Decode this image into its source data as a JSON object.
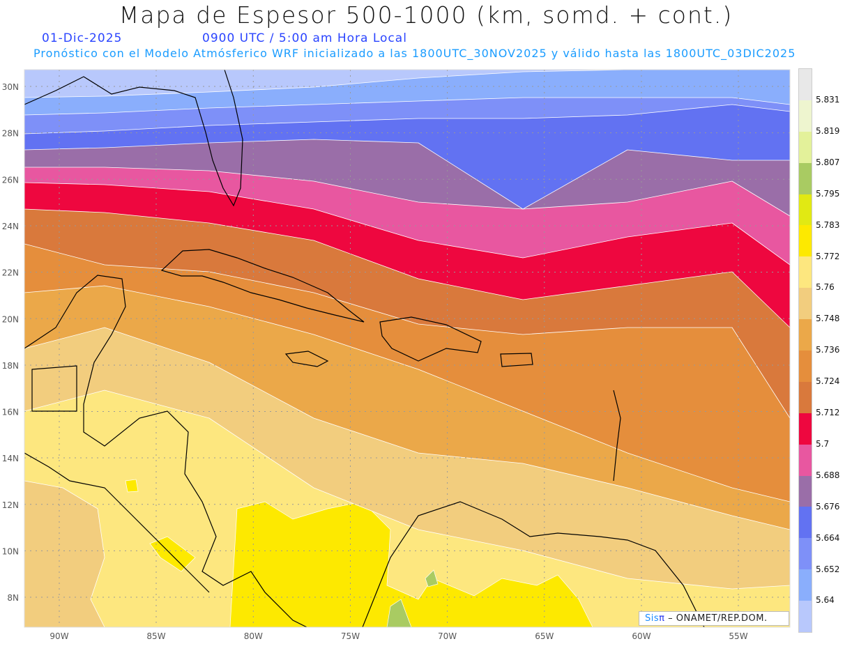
{
  "header": {
    "title": "Mapa de Espesor 500-1000 (km, somd. + cont.)",
    "date": "01-Dic-2025",
    "time": "0900 UTC / 5:00 am Hora Local",
    "subtitle": "Pronóstico con el Modelo Atmósferico WRF inicializado a las 1800UTC_30NOV2025 y válido hasta las  1800UTC_03DIC2025"
  },
  "axes": {
    "lat_labels": [
      "30N",
      "28N",
      "26N",
      "24N",
      "22N",
      "20N",
      "18N",
      "16N",
      "14N",
      "12N",
      "10N",
      "8N"
    ],
    "lon_labels": [
      "90W",
      "85W",
      "80W",
      "75W",
      "70W",
      "65W",
      "60W",
      "55W"
    ]
  },
  "colorbar": {
    "levels": [
      "5.831",
      "5.819",
      "5.807",
      "5.795",
      "5.783",
      "5.772",
      "5.76",
      "5.748",
      "5.736",
      "5.724",
      "5.712",
      "5.7",
      "5.688",
      "5.676",
      "5.664",
      "5.652",
      "5.64"
    ],
    "colors": [
      "#e8e8e8",
      "#eef5cf",
      "#e3f19a",
      "#a9cb62",
      "#e1e913",
      "#fde900",
      "#fde77f",
      "#f2cd7e",
      "#eba849",
      "#e58e3c",
      "#d9793c",
      "#ee073f",
      "#e857a0",
      "#9a6ea8",
      "#6272f2",
      "#7e90f8",
      "#8aaefc",
      "#b8c8fc"
    ]
  },
  "credit": {
    "sis": "Sis",
    "pi": "π",
    "org": " – ONAMET/REP.DOM."
  }
}
